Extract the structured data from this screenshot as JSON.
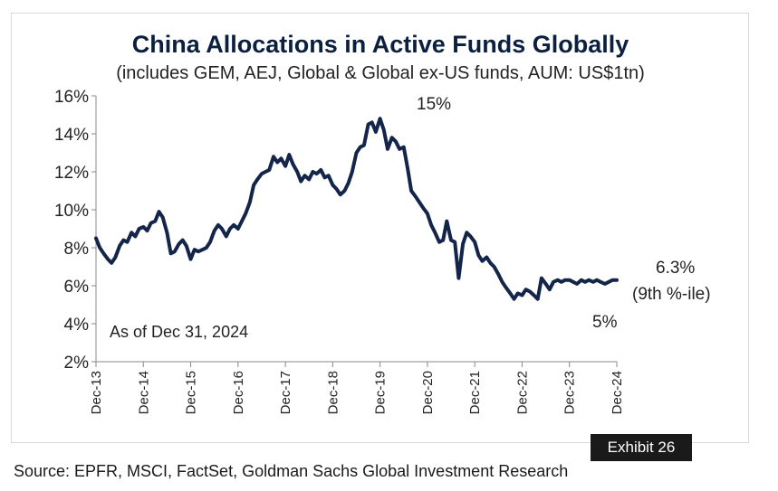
{
  "chart_data": {
    "type": "line",
    "title": "China Allocations  in Active Funds Globally",
    "subtitle": "(includes GEM,  AEJ,  Global & Global ex-US  funds, AUM:  US$1tn)",
    "xlabel": "",
    "ylabel": "",
    "ylim": [
      2,
      16
    ],
    "yticks": [
      "2%",
      "4%",
      "6%",
      "8%",
      "10%",
      "12%",
      "14%",
      "16%"
    ],
    "ytick_values": [
      2,
      4,
      6,
      8,
      10,
      12,
      14,
      16
    ],
    "xlim": [
      2013.92,
      2025.0
    ],
    "xticks": [
      "Dec-13",
      "Dec-14",
      "Dec-15",
      "Dec-16",
      "Dec-17",
      "Dec-18",
      "Dec-19",
      "Dec-20",
      "Dec-21",
      "Dec-22",
      "Dec-23",
      "Dec-24"
    ],
    "xtick_values": [
      2013.92,
      2014.92,
      2015.92,
      2016.92,
      2017.92,
      2018.92,
      2019.92,
      2020.92,
      2021.92,
      2022.92,
      2023.92,
      2024.92
    ],
    "line_color": "#14254a",
    "grid": false,
    "series": [
      {
        "x": [
          2013.92,
          2014.0,
          2014.08,
          2014.17,
          2014.25,
          2014.33,
          2014.42,
          2014.5,
          2014.58,
          2014.67,
          2014.75,
          2014.83,
          2014.92,
          2015.0,
          2015.08,
          2015.17,
          2015.25,
          2015.33,
          2015.42,
          2015.5,
          2015.58,
          2015.67,
          2015.75,
          2015.83,
          2015.92,
          2016.0,
          2016.08,
          2016.17,
          2016.25,
          2016.33,
          2016.42,
          2016.5,
          2016.58,
          2016.67,
          2016.75,
          2016.83,
          2016.92,
          2017.0,
          2017.08,
          2017.17,
          2017.25,
          2017.33,
          2017.42,
          2017.5,
          2017.58,
          2017.67,
          2017.75,
          2017.83,
          2017.92,
          2018.0,
          2018.08,
          2018.17,
          2018.25,
          2018.33,
          2018.42,
          2018.5,
          2018.58,
          2018.67,
          2018.75,
          2018.83,
          2018.92,
          2019.0,
          2019.08,
          2019.17,
          2019.25,
          2019.33,
          2019.42,
          2019.5,
          2019.58,
          2019.67,
          2019.75,
          2019.83,
          2019.92,
          2020.0,
          2020.08,
          2020.17,
          2020.25,
          2020.33,
          2020.42,
          2020.5,
          2020.58,
          2020.67,
          2020.75,
          2020.83,
          2020.92,
          2021.0,
          2021.08,
          2021.17,
          2021.25,
          2021.33,
          2021.42,
          2021.5,
          2021.58,
          2021.67,
          2021.75,
          2021.83,
          2021.92,
          2022.0,
          2022.08,
          2022.17,
          2022.25,
          2022.33,
          2022.42,
          2022.5,
          2022.58,
          2022.67,
          2022.75,
          2022.83,
          2022.92,
          2023.0,
          2023.08,
          2023.17,
          2023.25,
          2023.33,
          2023.42,
          2023.5,
          2023.58,
          2023.67,
          2023.75,
          2023.83,
          2023.92,
          2024.0,
          2024.08,
          2024.17,
          2024.25,
          2024.33,
          2024.42,
          2024.5,
          2024.58,
          2024.67,
          2024.75,
          2024.83,
          2024.92
        ],
        "values": [
          8.5,
          8.0,
          7.7,
          7.4,
          7.2,
          7.5,
          8.1,
          8.4,
          8.3,
          8.8,
          8.6,
          9.0,
          9.1,
          8.9,
          9.3,
          9.4,
          9.9,
          9.6,
          8.8,
          7.7,
          7.8,
          8.2,
          8.4,
          8.1,
          7.4,
          7.9,
          7.8,
          7.9,
          8.0,
          8.3,
          8.9,
          9.2,
          9.0,
          8.6,
          9.0,
          9.2,
          9.0,
          9.4,
          9.8,
          10.4,
          11.3,
          11.6,
          11.9,
          12.0,
          12.1,
          12.8,
          12.5,
          12.7,
          12.3,
          12.9,
          12.4,
          12.0,
          11.5,
          11.8,
          11.6,
          12.0,
          11.9,
          12.1,
          11.7,
          11.8,
          11.3,
          11.1,
          10.8,
          11.0,
          11.4,
          12.0,
          13.0,
          13.3,
          13.4,
          14.5,
          14.6,
          14.1,
          14.8,
          14.2,
          13.2,
          13.8,
          13.6,
          13.2,
          13.3,
          12.2,
          11.0,
          10.7,
          10.4,
          10.1,
          9.8,
          9.2,
          8.8,
          8.3,
          8.4,
          9.4,
          8.4,
          8.3,
          6.4,
          8.2,
          8.8,
          8.6,
          8.3,
          7.6,
          7.3,
          7.5,
          7.2,
          7.0,
          6.6,
          6.2,
          5.9,
          5.6,
          5.3,
          5.6,
          5.5,
          5.8,
          5.7,
          5.5,
          5.3,
          6.4,
          6.1,
          5.8,
          6.2,
          6.3,
          6.2,
          6.3,
          6.3,
          6.2,
          6.1,
          6.3,
          6.2,
          6.3,
          6.2,
          6.3,
          6.2,
          6.1,
          6.2,
          6.3,
          6.3
        ]
      }
    ],
    "annotations": {
      "peak": "15%",
      "trough": "5%",
      "latest_value": "6.3%",
      "latest_note": "(9th %-ile)",
      "as_of": "As of Dec 31, 2024"
    }
  },
  "footer": {
    "exhibit": "Exhibit 26",
    "source": "Source: EPFR, MSCI, FactSet, Goldman Sachs Global Investment Research"
  }
}
